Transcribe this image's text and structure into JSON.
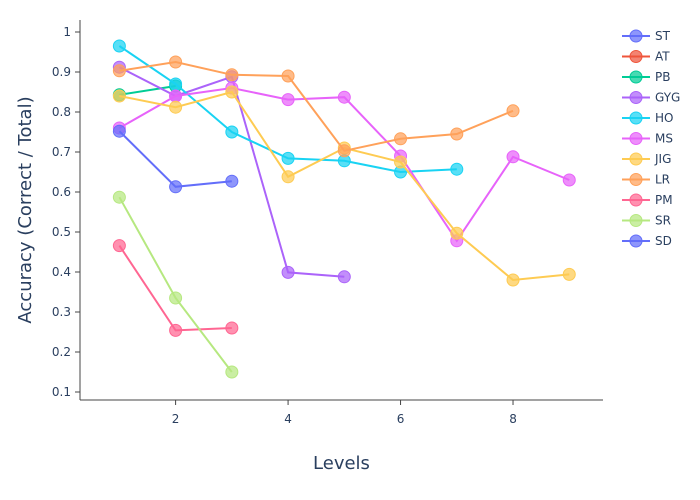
{
  "chart_data": {
    "type": "line",
    "xlabel": "Levels",
    "ylabel": "Accuracy (Correct / Total)",
    "xlim": [
      0.3,
      9.6
    ],
    "ylim": [
      0.08,
      1.03
    ],
    "xticks": [
      2,
      4,
      6,
      8
    ],
    "yticks": [
      0.1,
      0.2,
      0.3,
      0.4,
      0.5,
      0.6,
      0.7,
      0.8,
      0.9,
      1
    ],
    "legend_position": "top-right",
    "grid": false,
    "series": [
      {
        "name": "ST",
        "color": "#636efa",
        "x": [],
        "y": []
      },
      {
        "name": "AT",
        "color": "#EF553B",
        "x": [],
        "y": []
      },
      {
        "name": "PB",
        "color": "#00cc96",
        "x": [
          1,
          2
        ],
        "y": [
          0.843,
          0.865
        ]
      },
      {
        "name": "GYG",
        "color": "#ab63fa",
        "x": [
          1,
          2,
          3,
          4,
          5
        ],
        "y": [
          0.912,
          0.84,
          0.888,
          0.399,
          0.388
        ]
      },
      {
        "name": "HO",
        "color": "#19d3f3",
        "x": [
          1,
          2,
          3,
          4,
          5,
          6,
          7
        ],
        "y": [
          0.965,
          0.87,
          0.75,
          0.684,
          0.678,
          0.65,
          0.657
        ]
      },
      {
        "name": "MS",
        "color": "#e763fa",
        "x": [
          1,
          2,
          3,
          4,
          5,
          6,
          7,
          8,
          9
        ],
        "y": [
          0.76,
          0.84,
          0.86,
          0.831,
          0.837,
          0.69,
          0.478,
          0.688,
          0.63
        ]
      },
      {
        "name": "JIG",
        "color": "#FECB52",
        "x": [
          1,
          2,
          3,
          4,
          5,
          6,
          7,
          8,
          9
        ],
        "y": [
          0.84,
          0.812,
          0.85,
          0.638,
          0.71,
          0.675,
          0.497,
          0.38,
          0.394
        ]
      },
      {
        "name": "LR",
        "color": "#FFA15A",
        "x": [
          1,
          2,
          3,
          4,
          5,
          6,
          7,
          8
        ],
        "y": [
          0.903,
          0.925,
          0.893,
          0.89,
          0.703,
          0.733,
          0.745,
          0.803
        ]
      },
      {
        "name": "PM",
        "color": "#FF6692",
        "x": [
          1,
          2,
          3
        ],
        "y": [
          0.466,
          0.254,
          0.26
        ]
      },
      {
        "name": "SR",
        "color": "#B6E880",
        "x": [
          1,
          2,
          3
        ],
        "y": [
          0.587,
          0.335,
          0.15
        ]
      },
      {
        "name": "SD",
        "color": "#636efa",
        "x": [
          1,
          2,
          3
        ],
        "y": [
          0.752,
          0.613,
          0.627
        ]
      }
    ]
  }
}
